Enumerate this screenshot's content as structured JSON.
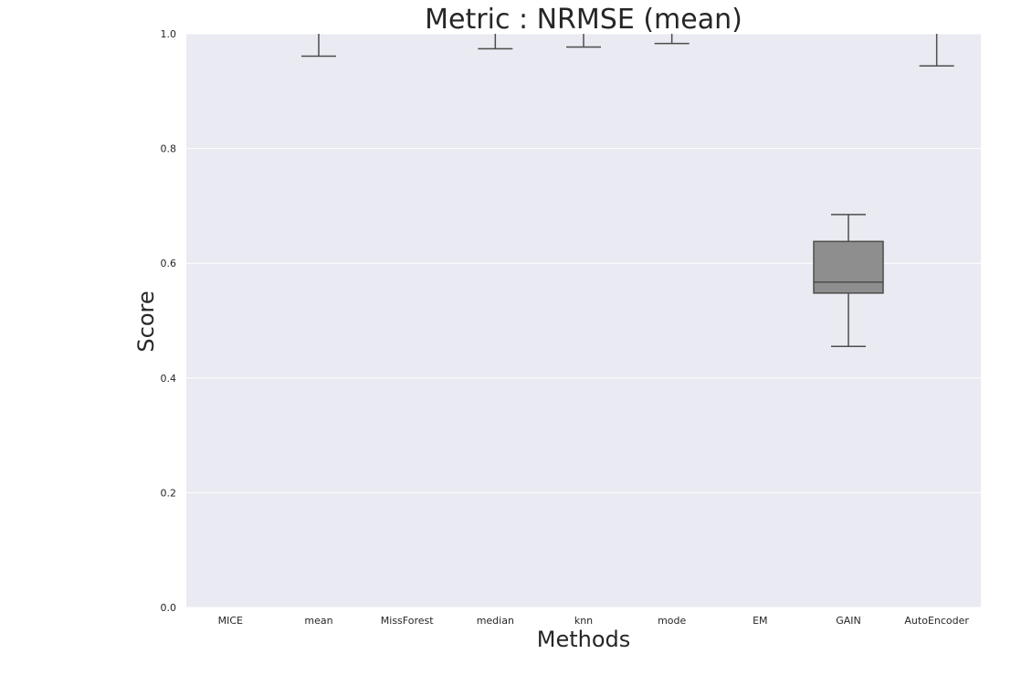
{
  "chart_data": {
    "type": "box",
    "title": "Metric : NRMSE (mean)",
    "xlabel": "Methods",
    "ylabel": "Score",
    "ylim": [
      0.0,
      1.0
    ],
    "yticks": [
      "0.0",
      "0.2",
      "0.4",
      "0.6",
      "0.8",
      "1.0"
    ],
    "grid": true,
    "categories": [
      "MICE",
      "mean",
      "MissForest",
      "median",
      "knn",
      "mode",
      "EM",
      "GAIN",
      "AutoEncoder"
    ],
    "boxes": [
      {
        "category": "MICE",
        "visible": false
      },
      {
        "category": "mean",
        "lower_whisker": 0.961
      },
      {
        "category": "MissForest",
        "visible": false
      },
      {
        "category": "median",
        "lower_whisker": 0.974
      },
      {
        "category": "knn",
        "lower_whisker": 0.977
      },
      {
        "category": "mode",
        "lower_whisker": 0.983
      },
      {
        "category": "EM",
        "visible": false
      },
      {
        "category": "GAIN",
        "lower_whisker": 0.455,
        "q1": 0.548,
        "median": 0.567,
        "q3": 0.638,
        "upper_whisker": 0.685
      },
      {
        "category": "AutoEncoder",
        "lower_whisker": 0.944
      }
    ],
    "colors": {
      "background": "#eaeaf2",
      "grid": "#ffffff",
      "box_fill": "#8e8e8e",
      "line": "#4d4d4d"
    }
  }
}
